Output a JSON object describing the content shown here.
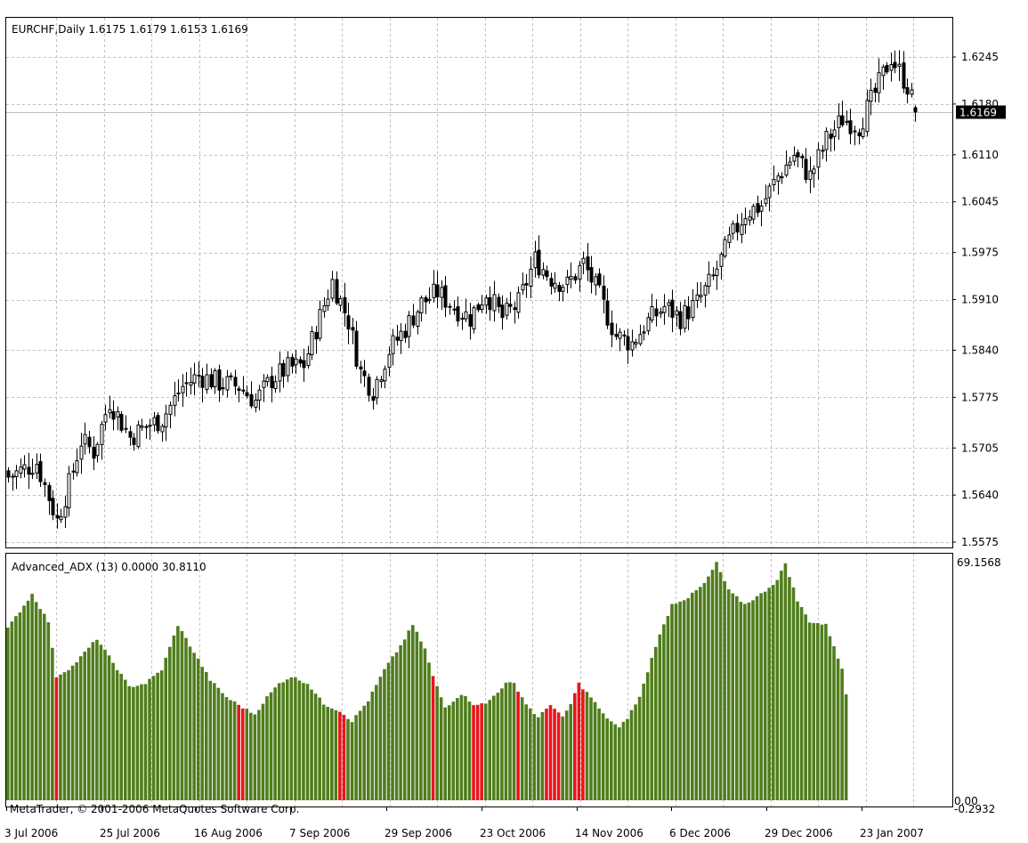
{
  "window": {
    "main_title": "EURCHF,Daily  1.6175 1.6179 1.6153 1.6169",
    "indicator_title": "Advanced_ADX (13) 0.0000 30.8110",
    "copyright": "MetaTrader, © 2001-2006 MetaQuotes Software Corp."
  },
  "colors": {
    "bull_candle": "#ffffff",
    "bear_candle": "#000000",
    "adx_up": "#4f7d1c",
    "adx_down": "#e8141b",
    "grid": "#c0c0c0",
    "price_line": "#c0c0c0",
    "price_badge": "#000000"
  },
  "chart_data": [
    {
      "type": "candlestick",
      "title": "EURCHF,Daily  1.6175 1.6179 1.6153 1.6169",
      "y_ticks": [
        "1.6245",
        "1.6180",
        "1.6110",
        "1.6045",
        "1.5975",
        "1.5910",
        "1.5840",
        "1.5775",
        "1.5705",
        "1.5640",
        "1.5575"
      ],
      "ylim": [
        1.557,
        1.63
      ],
      "current_price": "1.6169",
      "x_tick_labels": [
        "3 Jul 2006",
        "25 Jul 2006",
        "16 Aug 2006",
        "7 Sep 2006",
        "29 Sep 2006",
        "23 Oct 2006",
        "14 Nov 2006",
        "6 Dec 2006",
        "29 Dec 2006",
        "23 Jan 2007"
      ],
      "grid": true,
      "close_anchors": [
        [
          0,
          1.5665
        ],
        [
          7,
          1.5685
        ],
        [
          12,
          1.5605
        ],
        [
          15,
          1.5655
        ],
        [
          18,
          1.5715
        ],
        [
          21,
          1.57
        ],
        [
          25,
          1.577
        ],
        [
          30,
          1.572
        ],
        [
          34,
          1.5735
        ],
        [
          38,
          1.5745
        ],
        [
          43,
          1.579
        ],
        [
          47,
          1.5805
        ],
        [
          52,
          1.5795
        ],
        [
          57,
          1.579
        ],
        [
          61,
          1.577
        ],
        [
          65,
          1.58
        ],
        [
          69,
          1.5815
        ],
        [
          73,
          1.582
        ],
        [
          76,
          1.587
        ],
        [
          80,
          1.5935
        ],
        [
          84,
          1.588
        ],
        [
          87,
          1.581
        ],
        [
          90,
          1.5785
        ],
        [
          94,
          1.584
        ],
        [
          98,
          1.587
        ],
        [
          102,
          1.5905
        ],
        [
          106,
          1.592
        ],
        [
          110,
          1.59
        ],
        [
          114,
          1.5885
        ],
        [
          118,
          1.592
        ],
        [
          122,
          1.5885
        ],
        [
          126,
          1.5905
        ],
        [
          130,
          1.5965
        ],
        [
          134,
          1.594
        ],
        [
          138,
          1.593
        ],
        [
          142,
          1.596
        ],
        [
          146,
          1.5915
        ],
        [
          150,
          1.586
        ],
        [
          154,
          1.585
        ],
        [
          158,
          1.588
        ],
        [
          162,
          1.59
        ],
        [
          166,
          1.5885
        ],
        [
          170,
          1.5905
        ],
        [
          174,
          1.594
        ],
        [
          178,
          1.599
        ],
        [
          182,
          1.603
        ],
        [
          186,
          1.604
        ],
        [
          190,
          1.608
        ],
        [
          194,
          1.611
        ],
        [
          198,
          1.608
        ],
        [
          202,
          1.613
        ],
        [
          206,
          1.616
        ],
        [
          210,
          1.615
        ],
        [
          214,
          1.6195
        ],
        [
          218,
          1.6245
        ],
        [
          222,
          1.6205
        ],
        [
          224,
          1.6169
        ]
      ]
    },
    {
      "type": "bar",
      "title": "Advanced_ADX (13) 0.0000 30.8110",
      "y_ticks": [
        "69.1568",
        "0.00",
        "-0.2932"
      ],
      "ylim": [
        -0.2932,
        69.1568
      ],
      "last_value": 30.811,
      "red_ranges": [
        [
          12,
          12
        ],
        [
          57,
          58
        ],
        [
          82,
          83
        ],
        [
          105,
          105
        ],
        [
          115,
          117
        ],
        [
          126,
          126
        ],
        [
          133,
          136
        ],
        [
          140,
          142
        ]
      ],
      "value_anchors": [
        [
          0,
          50
        ],
        [
          6,
          60
        ],
        [
          10,
          52
        ],
        [
          12,
          36
        ],
        [
          16,
          39
        ],
        [
          22,
          47
        ],
        [
          26,
          40
        ],
        [
          30,
          33
        ],
        [
          34,
          34
        ],
        [
          38,
          38
        ],
        [
          42,
          51
        ],
        [
          46,
          43
        ],
        [
          50,
          35
        ],
        [
          54,
          30
        ],
        [
          58,
          27
        ],
        [
          61,
          25
        ],
        [
          64,
          30
        ],
        [
          67,
          34
        ],
        [
          70,
          36
        ],
        [
          74,
          34
        ],
        [
          78,
          28
        ],
        [
          82,
          26
        ],
        [
          85,
          23
        ],
        [
          89,
          29
        ],
        [
          93,
          38
        ],
        [
          97,
          45
        ],
        [
          100,
          51
        ],
        [
          103,
          44
        ],
        [
          105,
          36
        ],
        [
          108,
          27
        ],
        [
          112,
          31
        ],
        [
          115,
          28
        ],
        [
          118,
          28
        ],
        [
          123,
          34
        ],
        [
          125,
          34
        ],
        [
          128,
          28
        ],
        [
          131,
          24
        ],
        [
          134,
          28
        ],
        [
          137,
          24
        ],
        [
          139,
          28
        ],
        [
          141,
          34
        ],
        [
          144,
          30
        ],
        [
          147,
          25
        ],
        [
          151,
          21
        ],
        [
          153,
          24
        ],
        [
          156,
          30
        ],
        [
          160,
          45
        ],
        [
          164,
          57
        ],
        [
          168,
          59
        ],
        [
          172,
          63
        ],
        [
          175,
          69
        ],
        [
          178,
          61
        ],
        [
          182,
          57
        ],
        [
          186,
          60
        ],
        [
          190,
          64
        ],
        [
          192,
          69
        ],
        [
          195,
          58
        ],
        [
          198,
          52
        ],
        [
          202,
          51
        ],
        [
          204,
          45
        ],
        [
          206,
          38
        ],
        [
          207,
          31
        ]
      ]
    }
  ]
}
